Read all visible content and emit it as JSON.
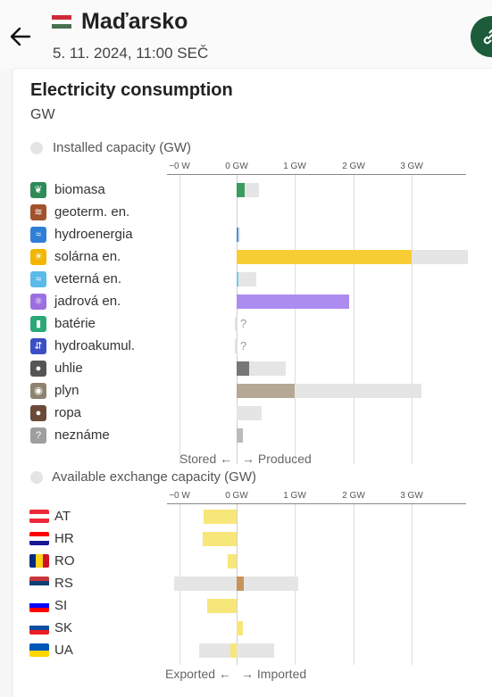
{
  "header": {
    "zone_name": "Maďarsko",
    "datetime": "5. 11. 2024, 11:00 SEČ",
    "flag_colors": [
      "#ce2939",
      "#ffffff",
      "#477050"
    ]
  },
  "card": {
    "title": "Electricity consumption",
    "unit": "GW"
  },
  "production": {
    "section_label": "Installed capacity (GW)",
    "footer_left": "Stored ←",
    "footer_right": "→ Produced",
    "ticks": [
      "~0 W",
      "0 GW",
      "1 GW",
      "2 GW",
      "3 GW"
    ],
    "rows": [
      {
        "label": "biomasa",
        "icon": "leaf-icon",
        "icon_char": "❦",
        "icon_color": "#2e8b57",
        "value": 0.14,
        "capacity": 0.39,
        "bar_color": "#3a9d5d",
        "unknown": ""
      },
      {
        "label": "geoterm. en.",
        "icon": "heat-waves-icon",
        "icon_char": "≋",
        "icon_color": "#a0522d",
        "value": 0,
        "capacity": 0,
        "bar_color": "#a0522d",
        "unknown": ""
      },
      {
        "label": "hydroenergia",
        "icon": "water-waves-icon",
        "icon_char": "≈",
        "icon_color": "#2f7fd6",
        "value": 0.03,
        "capacity": 0.06,
        "bar_color": "#4a90d9",
        "unknown": ""
      },
      {
        "label": "solárna en.",
        "icon": "sun-icon",
        "icon_char": "☀",
        "icon_color": "#f2b500",
        "value": 3.0,
        "capacity": 3.96,
        "bar_color": "#f7cd35",
        "unknown": ""
      },
      {
        "label": "veterná en.",
        "icon": "wind-icon",
        "icon_char": "≈",
        "icon_color": "#5bbbe8",
        "value": 0.02,
        "capacity": 0.33,
        "bar_color": "#74cbef",
        "unknown": ""
      },
      {
        "label": "jadrová en.",
        "icon": "atom-icon",
        "icon_char": "⚛",
        "icon_color": "#9b6fe0",
        "value": 1.93,
        "capacity": 1.93,
        "bar_color": "#ad8cf0",
        "unknown": ""
      },
      {
        "label": "batérie",
        "icon": "battery-icon",
        "icon_char": "▮",
        "icon_color": "#2aa876",
        "value": 0,
        "capacity": 0,
        "bar_color": "#cccccc",
        "unknown": "?"
      },
      {
        "label": "hydroakumul.",
        "icon": "pumped-storage-icon",
        "icon_char": "⇵",
        "icon_color": "#3b4fc4",
        "value": 0,
        "capacity": 0,
        "bar_color": "#cccccc",
        "unknown": "?"
      },
      {
        "label": "uhlie",
        "icon": "coal-icon",
        "icon_char": "●",
        "icon_color": "#555555",
        "value": 0.22,
        "capacity": 0.84,
        "bar_color": "#777777",
        "unknown": ""
      },
      {
        "label": "plyn",
        "icon": "gas-flame-icon",
        "icon_char": "◉",
        "icon_color": "#8e8270",
        "value": 0.99,
        "capacity": 3.17,
        "bar_color": "#b5a995",
        "unknown": ""
      },
      {
        "label": "ropa",
        "icon": "oil-drop-icon",
        "icon_char": "●",
        "icon_color": "#6b4a3a",
        "value": 0,
        "capacity": 0.43,
        "bar_color": "#8a6a55",
        "unknown": ""
      },
      {
        "label": "neznáme",
        "icon": "question-icon",
        "icon_char": "?",
        "icon_color": "#9e9e9e",
        "value": 0.1,
        "capacity": 0.1,
        "bar_color": "#bbbbbb",
        "unknown": ""
      }
    ]
  },
  "exchange": {
    "section_label": "Available exchange capacity (GW)",
    "footer_left": "Exported ←",
    "footer_right": "→ Imported",
    "ticks": [
      "~0 W",
      "0 GW",
      "1 GW",
      "2 GW",
      "3 GW"
    ],
    "rows": [
      {
        "label": "AT",
        "flag": "austria-flag",
        "value": -0.56,
        "cap_min": -0.56,
        "cap_max": 0,
        "bar_color": "#f7e77a"
      },
      {
        "label": "HR",
        "flag": "croatia-flag",
        "value": -0.58,
        "cap_min": -0.58,
        "cap_max": 0,
        "bar_color": "#f7e77a"
      },
      {
        "label": "RO",
        "flag": "romania-flag",
        "value": -0.15,
        "cap_min": -0.15,
        "cap_max": 0,
        "bar_color": "#f7e77a"
      },
      {
        "label": "RS",
        "flag": "serbia-flag",
        "value": 0.12,
        "cap_min": -1.07,
        "cap_max": 1.05,
        "bar_color": "#c8925a"
      },
      {
        "label": "SI",
        "flag": "slovenia-flag",
        "value": -0.5,
        "cap_min": -0.5,
        "cap_max": 0,
        "bar_color": "#f7e77a"
      },
      {
        "label": "SK",
        "flag": "slovakia-flag",
        "value": 0.1,
        "cap_min": 0,
        "cap_max": 0.1,
        "bar_color": "#f7e77a"
      },
      {
        "label": "UA",
        "flag": "ukraine-flag",
        "value": -0.1,
        "cap_min": -0.65,
        "cap_max": 0.65,
        "bar_color": "#f7e77a"
      }
    ]
  }
}
